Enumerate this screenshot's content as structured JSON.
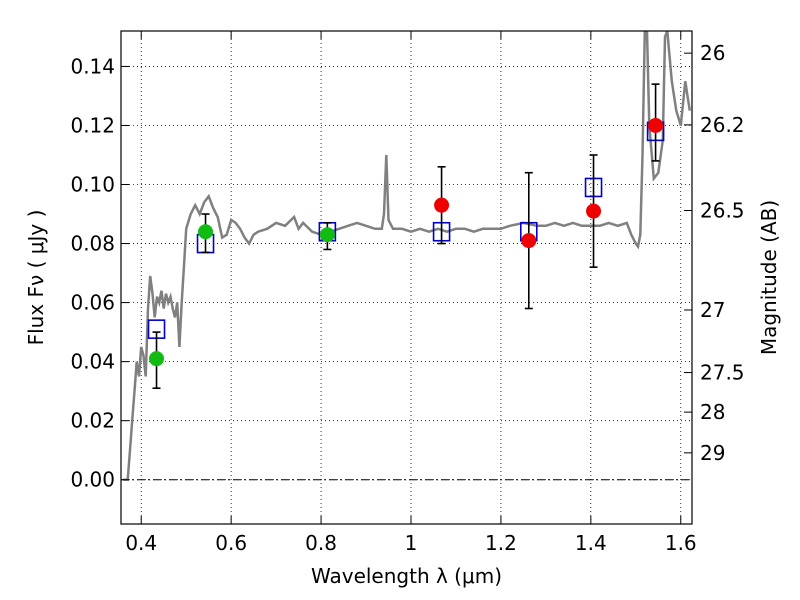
{
  "chart_data": {
    "type": "scatter",
    "xlabel": "Wavelength  λ (μm)",
    "ylabel": "Flux  Fν  ( μJy )",
    "y2label": "Magnitude (AB)",
    "xlim": [
      0.355,
      1.625
    ],
    "ylim": [
      -0.015,
      0.152
    ],
    "x_ticks": [
      {
        "value": 0.4,
        "label": "0.4"
      },
      {
        "value": 0.6,
        "label": "0.6"
      },
      {
        "value": 0.8,
        "label": "0.8"
      },
      {
        "value": 1.0,
        "label": "1"
      },
      {
        "value": 1.2,
        "label": "1.2"
      },
      {
        "value": 1.4,
        "label": "1.4"
      },
      {
        "value": 1.6,
        "label": "1.6"
      }
    ],
    "y_ticks": [
      {
        "value": 0.0,
        "label": "0.00"
      },
      {
        "value": 0.02,
        "label": "0.02"
      },
      {
        "value": 0.04,
        "label": "0.04"
      },
      {
        "value": 0.06,
        "label": "0.06"
      },
      {
        "value": 0.08,
        "label": "0.08"
      },
      {
        "value": 0.1,
        "label": "0.10"
      },
      {
        "value": 0.12,
        "label": "0.12"
      },
      {
        "value": 0.14,
        "label": "0.14"
      }
    ],
    "y2_ticks": [
      {
        "flux": 0.1445,
        "label": "26"
      },
      {
        "flux": 0.1202,
        "label": "26.2"
      },
      {
        "flux": 0.0912,
        "label": "26.5"
      },
      {
        "flux": 0.0575,
        "label": "27"
      },
      {
        "flux": 0.0363,
        "label": "27.5"
      },
      {
        "flux": 0.0229,
        "label": "28"
      },
      {
        "flux": 0.0091,
        "label": "29"
      }
    ],
    "grid": true,
    "zero_line": true,
    "colors": {
      "sed": "#808080",
      "model_marker": "#0000cc",
      "hst_optical": "#11bb11",
      "hst_nir": "#ee0000",
      "errorbar": "#000000"
    },
    "sed_curve": [
      [
        0.36,
        0.0
      ],
      [
        0.37,
        0.0
      ],
      [
        0.375,
        0.01
      ],
      [
        0.38,
        0.02
      ],
      [
        0.385,
        0.03
      ],
      [
        0.39,
        0.04
      ],
      [
        0.395,
        0.035
      ],
      [
        0.4,
        0.045
      ],
      [
        0.405,
        0.042
      ],
      [
        0.41,
        0.035
      ],
      [
        0.415,
        0.058
      ],
      [
        0.42,
        0.069
      ],
      [
        0.425,
        0.063
      ],
      [
        0.43,
        0.055
      ],
      [
        0.435,
        0.062
      ],
      [
        0.44,
        0.06
      ],
      [
        0.445,
        0.064
      ],
      [
        0.45,
        0.058
      ],
      [
        0.455,
        0.063
      ],
      [
        0.46,
        0.06
      ],
      [
        0.465,
        0.062
      ],
      [
        0.47,
        0.058
      ],
      [
        0.475,
        0.055
      ],
      [
        0.48,
        0.06
      ],
      [
        0.485,
        0.045
      ],
      [
        0.49,
        0.06
      ],
      [
        0.495,
        0.072
      ],
      [
        0.5,
        0.085
      ],
      [
        0.51,
        0.09
      ],
      [
        0.52,
        0.093
      ],
      [
        0.53,
        0.09
      ],
      [
        0.54,
        0.094
      ],
      [
        0.55,
        0.096
      ],
      [
        0.56,
        0.092
      ],
      [
        0.57,
        0.089
      ],
      [
        0.58,
        0.082
      ],
      [
        0.59,
        0.083
      ],
      [
        0.6,
        0.088
      ],
      [
        0.61,
        0.087
      ],
      [
        0.62,
        0.085
      ],
      [
        0.63,
        0.082
      ],
      [
        0.64,
        0.08
      ],
      [
        0.65,
        0.083
      ],
      [
        0.66,
        0.084
      ],
      [
        0.68,
        0.085
      ],
      [
        0.7,
        0.087
      ],
      [
        0.72,
        0.086
      ],
      [
        0.74,
        0.089
      ],
      [
        0.75,
        0.085
      ],
      [
        0.76,
        0.087
      ],
      [
        0.78,
        0.084
      ],
      [
        0.8,
        0.083
      ],
      [
        0.82,
        0.084
      ],
      [
        0.84,
        0.085
      ],
      [
        0.86,
        0.086
      ],
      [
        0.88,
        0.087
      ],
      [
        0.9,
        0.086
      ],
      [
        0.92,
        0.085
      ],
      [
        0.935,
        0.085
      ],
      [
        0.94,
        0.09
      ],
      [
        0.945,
        0.11
      ],
      [
        0.95,
        0.088
      ],
      [
        0.96,
        0.085
      ],
      [
        0.98,
        0.085
      ],
      [
        1.0,
        0.084
      ],
      [
        1.02,
        0.085
      ],
      [
        1.04,
        0.084
      ],
      [
        1.06,
        0.085
      ],
      [
        1.08,
        0.084
      ],
      [
        1.1,
        0.085
      ],
      [
        1.12,
        0.085
      ],
      [
        1.14,
        0.084
      ],
      [
        1.16,
        0.085
      ],
      [
        1.18,
        0.085
      ],
      [
        1.2,
        0.085
      ],
      [
        1.22,
        0.086
      ],
      [
        1.25,
        0.087
      ],
      [
        1.28,
        0.086
      ],
      [
        1.3,
        0.086
      ],
      [
        1.32,
        0.087
      ],
      [
        1.34,
        0.086
      ],
      [
        1.36,
        0.087
      ],
      [
        1.38,
        0.086
      ],
      [
        1.4,
        0.086
      ],
      [
        1.42,
        0.086
      ],
      [
        1.44,
        0.087
      ],
      [
        1.46,
        0.086
      ],
      [
        1.48,
        0.087
      ],
      [
        1.49,
        0.083
      ],
      [
        1.5,
        0.08
      ],
      [
        1.505,
        0.079
      ],
      [
        1.51,
        0.083
      ],
      [
        1.515,
        0.11
      ],
      [
        1.52,
        0.152
      ],
      [
        1.525,
        0.152
      ],
      [
        1.53,
        0.12
      ],
      [
        1.54,
        0.102
      ],
      [
        1.55,
        0.104
      ],
      [
        1.56,
        0.115
      ],
      [
        1.565,
        0.15
      ],
      [
        1.57,
        0.152
      ],
      [
        1.58,
        0.135
      ],
      [
        1.59,
        0.125
      ],
      [
        1.6,
        0.12
      ],
      [
        1.61,
        0.135
      ],
      [
        1.615,
        0.13
      ],
      [
        1.62,
        0.125
      ]
    ],
    "model_points": [
      {
        "x": 0.434,
        "y": 0.051
      },
      {
        "x": 0.543,
        "y": 0.08
      },
      {
        "x": 0.814,
        "y": 0.084
      },
      {
        "x": 1.068,
        "y": 0.084
      },
      {
        "x": 1.262,
        "y": 0.084
      },
      {
        "x": 1.406,
        "y": 0.099
      },
      {
        "x": 1.544,
        "y": 0.118
      }
    ],
    "series": [
      {
        "color": "#11bb11",
        "points": [
          {
            "x": 0.434,
            "y": 0.041,
            "err_lo": 0.031,
            "err_hi": 0.05
          },
          {
            "x": 0.543,
            "y": 0.084,
            "err_lo": 0.077,
            "err_hi": 0.09
          },
          {
            "x": 0.814,
            "y": 0.083,
            "err_lo": 0.078,
            "err_hi": 0.087
          }
        ]
      },
      {
        "color": "#ee0000",
        "points": [
          {
            "x": 1.068,
            "y": 0.093,
            "err_lo": 0.08,
            "err_hi": 0.106
          },
          {
            "x": 1.262,
            "y": 0.081,
            "err_lo": 0.058,
            "err_hi": 0.104
          },
          {
            "x": 1.406,
            "y": 0.091,
            "err_lo": 0.072,
            "err_hi": 0.11
          },
          {
            "x": 1.544,
            "y": 0.12,
            "err_lo": 0.108,
            "err_hi": 0.134
          }
        ]
      }
    ]
  }
}
